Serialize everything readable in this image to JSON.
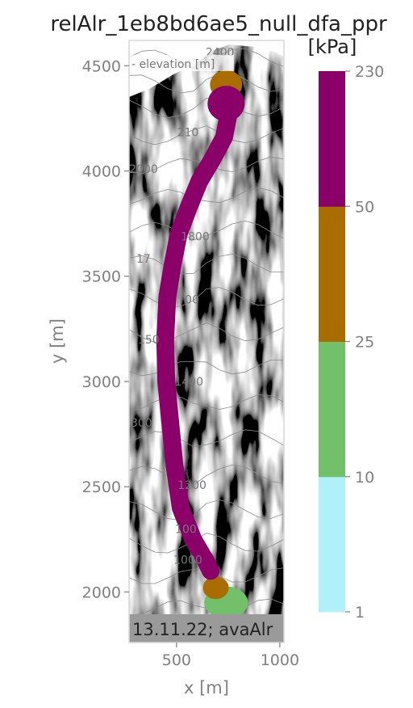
{
  "chart_data": {
    "type": "heatmap",
    "title": "relAlr_1eb8bd6ae5_null_dfa_ppr",
    "xlabel": "x [m]",
    "ylabel": "y [m]",
    "xlim": [
      270,
      1020
    ],
    "ylim": [
      1760,
      4620
    ],
    "x_ticks": [
      500,
      1000
    ],
    "y_ticks": [
      2000,
      2500,
      3000,
      3500,
      4000,
      4500
    ],
    "colorbar": {
      "unit": "[kPa]",
      "levels": [
        1,
        10,
        25,
        50,
        230
      ],
      "colors": [
        "#b0f0f8",
        "#72c16a",
        "#a86c00",
        "#8b0068"
      ]
    },
    "contour_legend": "- elevation [m]",
    "contour_labels": [
      {
        "text": "2400",
        "x": 710,
        "y": 4545
      },
      {
        "text": "210",
        "x": 555,
        "y": 4165
      },
      {
        "text": "2000",
        "x": 340,
        "y": 3990
      },
      {
        "text": "1800",
        "x": 590,
        "y": 3670
      },
      {
        "text": "17",
        "x": 340,
        "y": 3565
      },
      {
        "text": "00",
        "x": 575,
        "y": 3370
      },
      {
        "text": "150",
        "x": 365,
        "y": 3180
      },
      {
        "text": "1400",
        "x": 560,
        "y": 2980
      },
      {
        "text": "300",
        "x": 330,
        "y": 2785
      },
      {
        "text": "1200",
        "x": 575,
        "y": 2490
      },
      {
        "text": "1000",
        "x": 555,
        "y": 2135
      },
      {
        "text": "100",
        "x": 545,
        "y": 2280
      },
      {
        "text": "90",
        "x": 405,
        "y": 1855
      }
    ],
    "flow_path": {
      "name": "",
      "x": [
        740,
        750,
        730,
        670,
        610,
        560,
        510,
        480,
        455,
        445,
        450,
        470,
        490,
        520,
        580,
        640,
        665
      ],
      "y": [
        4340,
        4260,
        4160,
        4050,
        3950,
        3830,
        3700,
        3550,
        3400,
        3200,
        3000,
        2800,
        2600,
        2400,
        2250,
        2150,
        2100
      ]
    },
    "zones": [
      {
        "level": "50-230",
        "x": 740,
        "y": 4320
      },
      {
        "level": "25-50",
        "x": 740,
        "y": 4410
      },
      {
        "level": "25-50",
        "x": 690,
        "y": 2020
      },
      {
        "level": "10-25",
        "x": 740,
        "y": 1950
      },
      {
        "level": "1-10",
        "x": 770,
        "y": 1840
      }
    ],
    "stamp": "13.11.22; avaAlr"
  }
}
